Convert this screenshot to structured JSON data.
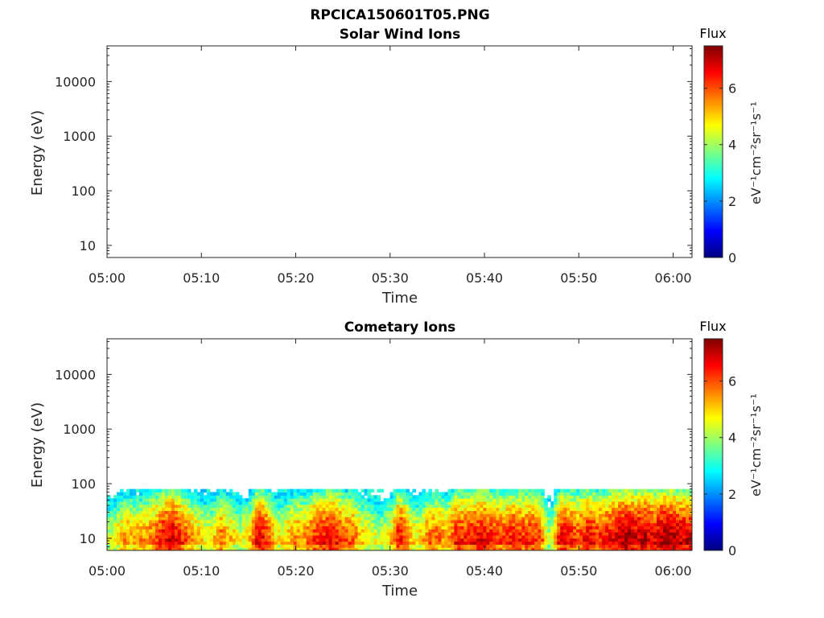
{
  "figure": {
    "title": "RPCICA150601T05.PNG"
  },
  "colormap": {
    "name": "jet",
    "stops": [
      "#00007f",
      "#0000ff",
      "#007fff",
      "#00ffff",
      "#7fff7f",
      "#ffff00",
      "#ff7f00",
      "#ff0000",
      "#7f0000"
    ]
  },
  "chart_data": [
    {
      "type": "heatmap",
      "title": "Solar Wind Ions",
      "xlabel": "Time",
      "ylabel": "Energy (eV)",
      "x_ticks": [
        "05:00",
        "05:10",
        "05:20",
        "05:30",
        "05:40",
        "05:50",
        "06:00"
      ],
      "x_range_minutes": [
        0,
        62
      ],
      "y_scale": "log",
      "y_ticks": [
        "10",
        "100",
        "1000",
        "10000"
      ],
      "ylim": [
        6,
        45000
      ],
      "colorbar": {
        "title": "Flux",
        "label": "eV⁻¹cm⁻²sr⁻¹s⁻¹",
        "ticks": [
          "0",
          "2",
          "4",
          "6"
        ],
        "range": [
          0,
          7.5
        ]
      },
      "data_present": false
    },
    {
      "type": "heatmap",
      "title": "Cometary Ions",
      "xlabel": "Time",
      "ylabel": "Energy (eV)",
      "x_ticks": [
        "05:00",
        "05:10",
        "05:20",
        "05:30",
        "05:40",
        "05:50",
        "06:00"
      ],
      "x_range_minutes": [
        0,
        62
      ],
      "y_scale": "log",
      "y_ticks": [
        "10",
        "100",
        "1000",
        "10000"
      ],
      "ylim": [
        6,
        45000
      ],
      "colorbar": {
        "title": "Flux",
        "label": "eV⁻¹cm⁻²sr⁻¹s⁻¹",
        "ticks": [
          "0",
          "2",
          "4",
          "6"
        ],
        "range": [
          0,
          7.5
        ]
      },
      "data_present": true,
      "energy_max_eV": 80,
      "activity_profile": {
        "time_min": [
          0,
          1,
          2,
          3,
          4,
          5,
          6,
          7,
          8,
          9,
          10,
          11,
          12,
          13,
          14,
          15,
          16,
          17,
          18,
          19,
          20,
          21,
          22,
          23,
          24,
          25,
          26,
          27,
          28,
          29,
          30,
          31,
          32,
          33,
          34,
          35,
          36,
          37,
          38,
          39,
          40,
          41,
          42,
          43,
          44,
          45,
          46,
          47,
          48,
          49,
          50,
          51,
          52,
          53,
          54,
          55,
          56,
          57,
          58,
          59,
          60,
          61
        ],
        "flux": [
          4.2,
          5.0,
          5.6,
          5.4,
          5.6,
          6.0,
          6.8,
          7.0,
          6.4,
          5.6,
          5.0,
          4.8,
          6.0,
          5.4,
          4.6,
          5.0,
          7.0,
          6.4,
          4.8,
          5.2,
          5.8,
          5.6,
          6.4,
          6.6,
          6.8,
          6.2,
          6.0,
          5.2,
          4.8,
          4.4,
          5.0,
          6.8,
          5.6,
          4.8,
          5.8,
          6.0,
          5.4,
          6.6,
          6.4,
          6.6,
          6.8,
          6.4,
          6.2,
          6.6,
          6.4,
          6.4,
          6.2,
          4.0,
          6.8,
          6.6,
          6.2,
          6.8,
          6.4,
          6.6,
          7.0,
          7.4,
          7.0,
          7.2,
          6.8,
          7.4,
          7.2,
          7.0
        ]
      }
    }
  ]
}
